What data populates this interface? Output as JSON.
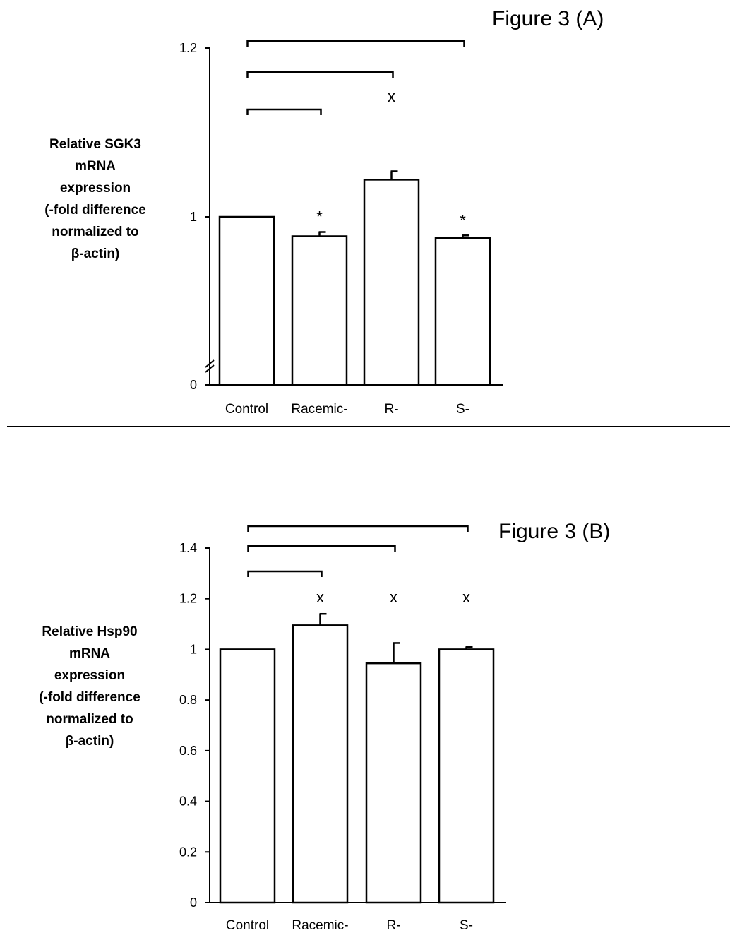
{
  "chart_data": [
    {
      "type": "bar",
      "title": "Figure 3 (A)",
      "ylabel_lines": [
        "Relative SGK3",
        "mRNA",
        "expression",
        "(-fold difference",
        "normalized to",
        "β-actin)"
      ],
      "categories": [
        "Control",
        "Racemic-",
        "R-",
        "S-"
      ],
      "values": [
        1.0,
        0.977,
        1.044,
        0.975
      ],
      "errors": [
        0,
        0.005,
        0.01,
        0.003
      ],
      "annotations": [
        "",
        "*",
        "x",
        "*"
      ],
      "yticks": [
        "0",
        "1",
        "1.2"
      ],
      "axis_break": true,
      "ylim": [
        0.9,
        1.1
      ],
      "brackets": [
        [
          "Control",
          "Racemic-"
        ],
        [
          "Control",
          "R-"
        ],
        [
          "Control",
          "S-"
        ]
      ]
    },
    {
      "type": "bar",
      "title": "Figure 3 (B)",
      "ylabel_lines": [
        "Relative Hsp90",
        "mRNA",
        "expression",
        "(-fold difference",
        "normalized to",
        "β-actin)"
      ],
      "categories": [
        "Control",
        "Racemic-",
        "R-",
        "S-"
      ],
      "values": [
        1.0,
        1.095,
        0.945,
        1.0
      ],
      "errors": [
        0,
        0.045,
        0.08,
        0.01
      ],
      "annotations": [
        "",
        "x",
        "x",
        "x"
      ],
      "yticks": [
        "0",
        "0.2",
        "0.4",
        "0.6",
        "0.8",
        "1",
        "1.2",
        "1.4"
      ],
      "axis_break": false,
      "ylim": [
        0,
        1.4
      ],
      "brackets": [
        [
          "Control",
          "Racemic-"
        ],
        [
          "Control",
          "R-"
        ],
        [
          "Control",
          "S-"
        ]
      ]
    }
  ]
}
